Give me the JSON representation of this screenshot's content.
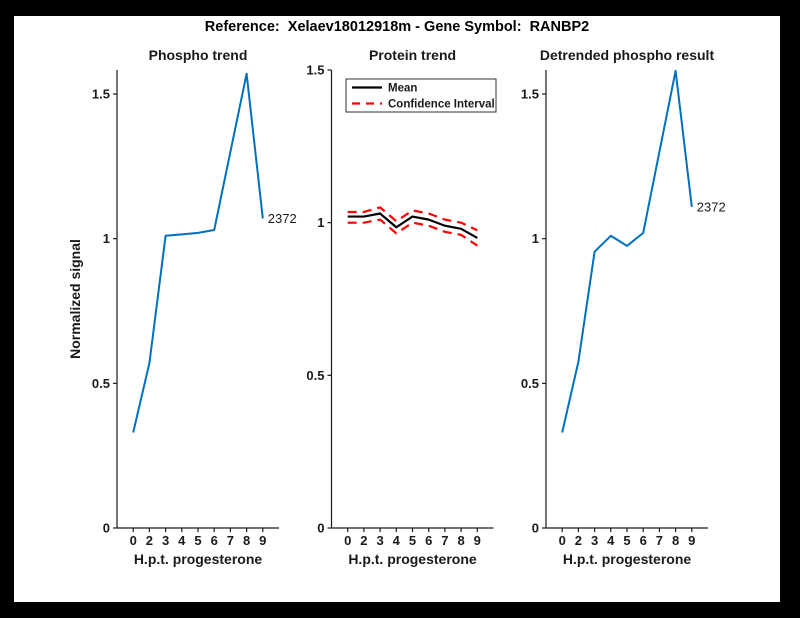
{
  "figure": {
    "title": "Reference:  Xelaev18012918m - Gene Symbol:  RANBP2",
    "background_color": "#ffffff",
    "frame_color": "#000000",
    "axis_color": "#1a1a1a",
    "text_color": "#1a1a1a"
  },
  "chart_data": [
    {
      "type": "line",
      "title": "Phospho trend",
      "xlabel": "H.p.t. progesterone",
      "ylabel": "Normalized signal",
      "categories": [
        "0",
        "2",
        "3",
        "4",
        "5",
        "6",
        "7",
        "8",
        "9"
      ],
      "yticks": [
        0,
        0.5,
        1,
        1.5
      ],
      "ytick_labels": [
        "0",
        "0.5",
        "1",
        "1.5"
      ],
      "ylim": [
        0,
        1.583
      ],
      "grid": false,
      "series": [
        {
          "name": "phospho-signal",
          "color": "#0072BD",
          "style": "solid",
          "width": 2,
          "values": [
            0.33,
            0.57,
            1.01,
            1.015,
            1.02,
            1.03,
            1.3,
            1.57,
            1.07
          ]
        }
      ],
      "annotation": {
        "text": "2372",
        "at_index": 8,
        "value": 1.07
      }
    },
    {
      "type": "line",
      "title": "Protein trend",
      "xlabel": "H.p.t. progesterone",
      "ylabel": "",
      "categories": [
        "0",
        "2",
        "3",
        "4",
        "5",
        "6",
        "7",
        "8",
        "9"
      ],
      "yticks": [
        0,
        0.5,
        1,
        1.5
      ],
      "ytick_labels": [
        "0",
        "0.5",
        "1",
        "1.5"
      ],
      "ylim": [
        0,
        1.5
      ],
      "grid": false,
      "legend": {
        "position": "top-left-inside",
        "entries": [
          {
            "label": "Mean",
            "color": "#000000",
            "style": "solid"
          },
          {
            "label": "Confidence Interval",
            "color": "#FF0000",
            "style": "dashed"
          }
        ]
      },
      "series": [
        {
          "name": "mean",
          "color": "#000000",
          "style": "solid",
          "width": 2.2,
          "values": [
            1.02,
            1.02,
            1.03,
            0.985,
            1.02,
            1.01,
            0.99,
            0.98,
            0.95
          ]
        },
        {
          "name": "ci-upper",
          "color": "#FF0000",
          "style": "dashed",
          "width": 2.2,
          "values": [
            1.035,
            1.035,
            1.05,
            1.005,
            1.04,
            1.03,
            1.01,
            1.0,
            0.975
          ]
        },
        {
          "name": "ci-lower",
          "color": "#FF0000",
          "style": "dashed",
          "width": 2.2,
          "values": [
            1.0,
            1.0,
            1.01,
            0.965,
            1.0,
            0.99,
            0.97,
            0.96,
            0.925
          ]
        }
      ]
    },
    {
      "type": "line",
      "title": "Detrended phospho result",
      "xlabel": "H.p.t. progesterone",
      "ylabel": "",
      "categories": [
        "0",
        "2",
        "3",
        "4",
        "5",
        "6",
        "7",
        "8",
        "9"
      ],
      "yticks": [
        0,
        0.5,
        1,
        1.5
      ],
      "ytick_labels": [
        "0",
        "0.5",
        "1",
        "1.5"
      ],
      "ylim": [
        0,
        1.583
      ],
      "grid": false,
      "series": [
        {
          "name": "detrended-signal",
          "color": "#0072BD",
          "style": "solid",
          "width": 2,
          "values": [
            0.33,
            0.575,
            0.955,
            1.01,
            0.975,
            1.02,
            1.3,
            1.58,
            1.11
          ]
        }
      ],
      "annotation": {
        "text": "2372",
        "at_index": 8,
        "value": 1.11
      }
    }
  ]
}
